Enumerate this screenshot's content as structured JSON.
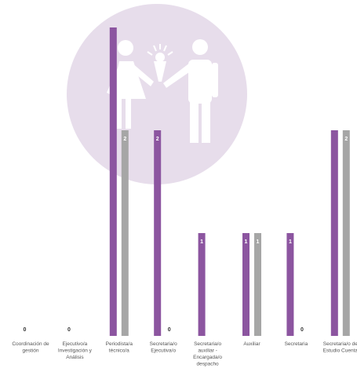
{
  "chart_data": {
    "type": "bar",
    "categories": [
      [
        "Coordinación de",
        "gestión"
      ],
      [
        "Ejecutivo/a",
        "Investigación y",
        "Análisis"
      ],
      [
        "Periodista/a",
        "técnico/a"
      ],
      [
        "Secretaria/o",
        "Ejecutiva/o"
      ],
      [
        "Secretaria/o",
        "auxiliar -",
        "Encargada/o",
        "despacho"
      ],
      [
        "Auxiliar"
      ],
      [
        "Secretaria"
      ],
      [
        "Secretaria/o de",
        "Estudio Cuenta"
      ]
    ],
    "series": [
      {
        "values": [
          0,
          0,
          3,
          2,
          1,
          1,
          1,
          2
        ],
        "color": "#8C55A0"
      },
      {
        "values": [
          0,
          0,
          2,
          0,
          0,
          1,
          0,
          2
        ],
        "color": "#A6A6A6"
      }
    ],
    "data_labels": [
      [
        "0",
        "0",
        "",
        "2",
        "1",
        "1",
        "1",
        ""
      ],
      [
        "",
        "",
        "2",
        "0",
        "",
        "1",
        "0",
        "2"
      ]
    ],
    "ylim": [
      0,
      3
    ],
    "grid": false,
    "legend": "none",
    "watermark": {
      "color": "#E7DDEB",
      "icon": "couple-with-bouquet-icon"
    }
  }
}
